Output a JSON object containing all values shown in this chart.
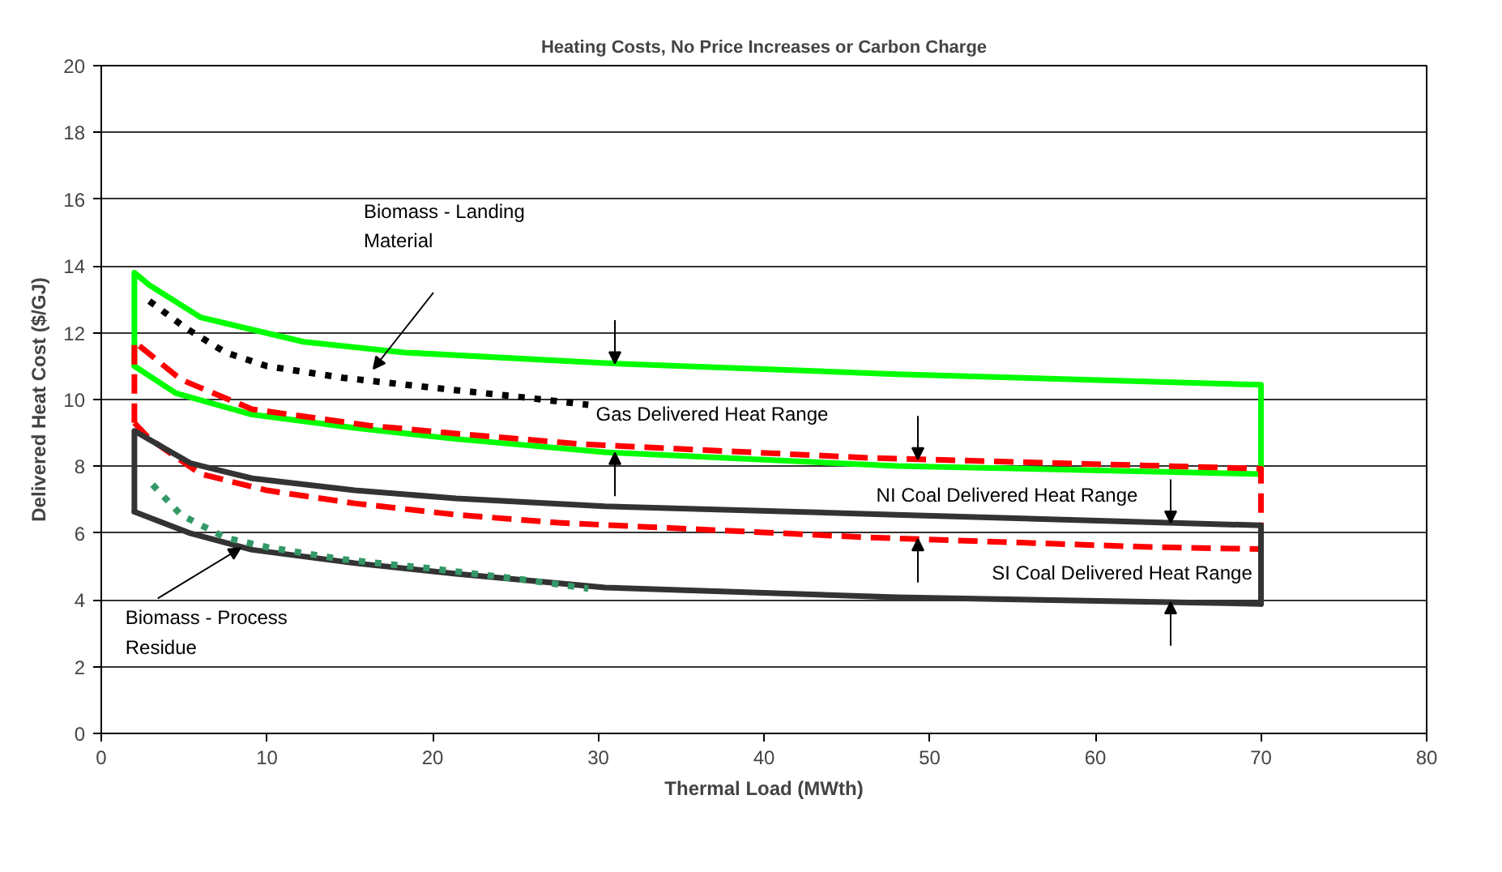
{
  "chart_data": {
    "type": "line",
    "title": "Heating Costs, No Price Increases or Carbon Charge",
    "xlabel": "Thermal Load (MWth)",
    "ylabel": "Delivered Heat Cost ($/GJ)",
    "xlim": [
      0,
      80
    ],
    "xticks": [
      0,
      10,
      20,
      30,
      40,
      50,
      60,
      70,
      80
    ],
    "ylim": [
      0,
      20
    ],
    "yticks": [
      0,
      2,
      4,
      6,
      8,
      10,
      12,
      14,
      16,
      18,
      20
    ],
    "grid": "y",
    "series": [
      {
        "color": "#00ff00",
        "line_style": "solid",
        "x": [
          2,
          2,
          2.9,
          6,
          12.2,
          18.3,
          30.4,
          48,
          70,
          70
        ],
        "values": [
          11.0,
          13.8,
          13.43,
          12.46,
          11.73,
          11.41,
          11.09,
          10.76,
          10.44,
          7.77
        ]
      },
      {
        "color": "#00ff00",
        "line_style": "solid",
        "x": [
          2,
          4.5,
          9.1,
          15.3,
          21.4,
          30.4,
          48,
          70
        ],
        "values": [
          11.0,
          10.19,
          9.55,
          9.15,
          8.82,
          8.42,
          8.01,
          7.77
        ]
      },
      {
        "color": "#ff0000",
        "line_style": "dashed",
        "x": [
          2,
          2,
          4.8,
          9.1,
          16.2,
          21.4,
          29.1,
          46.4,
          70,
          70
        ],
        "values": [
          9.3,
          11.73,
          10.6,
          9.71,
          9.22,
          8.98,
          8.66,
          8.25,
          7.93,
          5.52
        ]
      },
      {
        "color": "#ff0000",
        "line_style": "dashed",
        "x": [
          2,
          2.9,
          6,
          10,
          15.3,
          21.4,
          27.6,
          46.4,
          63.4,
          70
        ],
        "values": [
          9.3,
          8.83,
          7.77,
          7.28,
          6.89,
          6.55,
          6.31,
          5.87,
          5.58,
          5.52
        ]
      },
      {
        "color": "#333333",
        "line_style": "solid",
        "x": [
          2,
          2,
          5.4,
          9.1,
          15.3,
          21.4,
          30.4,
          48,
          70,
          70
        ],
        "values": [
          6.64,
          9.06,
          8.09,
          7.64,
          7.28,
          7.04,
          6.8,
          6.55,
          6.23,
          3.88
        ]
      },
      {
        "color": "#333333",
        "line_style": "solid",
        "x": [
          2,
          5.4,
          9.1,
          15.3,
          21.4,
          30.4,
          48,
          70
        ],
        "values": [
          6.64,
          5.99,
          5.5,
          5.1,
          4.78,
          4.37,
          4.08,
          3.88
        ]
      },
      {
        "color": "#000000",
        "line_style": "dotted",
        "x": [
          2.9,
          5.1,
          7.5,
          10,
          14.6,
          19.9,
          25.4,
          29.4
        ],
        "values": [
          12.95,
          12.14,
          11.41,
          11.0,
          10.65,
          10.36,
          10.07,
          9.84
        ]
      },
      {
        "color": "#339966",
        "line_style": "dotted",
        "x": [
          3.1,
          4.8,
          7.5,
          10,
          14.6,
          19.9,
          25.4,
          29.4
        ],
        "values": [
          7.45,
          6.55,
          5.86,
          5.58,
          5.21,
          4.94,
          4.61,
          4.34
        ]
      }
    ],
    "annotations": [
      "Biomass - Landing\nMaterial",
      {
        "text": "Biomass - Process\nResidue",
        "x": 8.4,
        "y": 5.55
      },
      "Gas Delivered Heat Range",
      "NI Coal Delivered Heat Range",
      "SI Coal Delivered Heat Range"
    ]
  }
}
